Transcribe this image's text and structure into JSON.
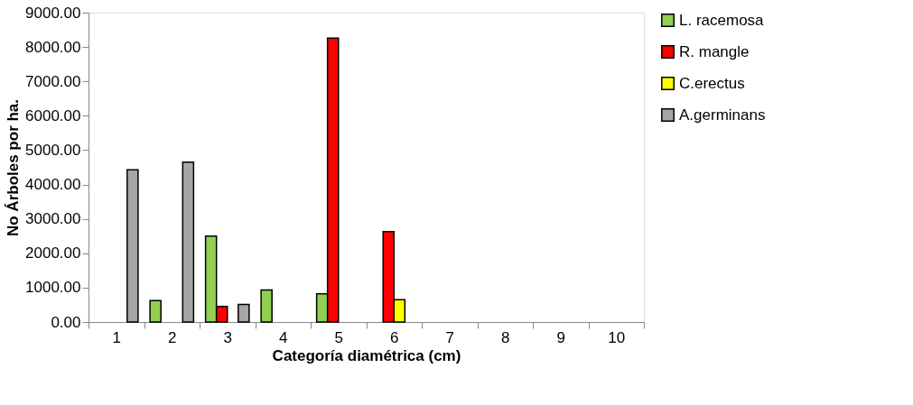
{
  "chart_data": {
    "type": "bar",
    "xlabel": "Categoría diamétrica (cm)",
    "ylabel": "No Árboles por ha.",
    "categories": [
      "1",
      "2",
      "3",
      "4",
      "5",
      "6",
      "7",
      "8",
      "9",
      "10"
    ],
    "series": [
      {
        "name": "L. racemosa",
        "color": "#92d050",
        "values": [
          null,
          620,
          2500,
          930,
          820,
          null,
          null,
          null,
          null,
          null
        ]
      },
      {
        "name": "R. mangle",
        "color": "#ff0000",
        "values": [
          null,
          null,
          450,
          null,
          8260,
          2630,
          null,
          null,
          null,
          null
        ]
      },
      {
        "name": "C.erectus",
        "color": "#ffff00",
        "values": [
          null,
          null,
          null,
          null,
          null,
          650,
          null,
          null,
          null,
          null
        ]
      },
      {
        "name": "A.germinans",
        "color": "#a6a6a6",
        "values": [
          4430,
          4650,
          510,
          null,
          null,
          null,
          null,
          null,
          null,
          null
        ]
      }
    ],
    "ylim": [
      0,
      9000
    ],
    "yticks": [
      {
        "value": 0,
        "label": "0.00"
      },
      {
        "value": 1000,
        "label": "1000.00"
      },
      {
        "value": 2000,
        "label": "2000.00"
      },
      {
        "value": 3000,
        "label": "3000.00"
      },
      {
        "value": 4000,
        "label": "4000.00"
      },
      {
        "value": 5000,
        "label": "5000.00"
      },
      {
        "value": 6000,
        "label": "6000.00"
      },
      {
        "value": 7000,
        "label": "7000.00"
      },
      {
        "value": 8000,
        "label": "8000.00"
      },
      {
        "value": 9000,
        "label": "9000.00"
      }
    ],
    "grid": false,
    "legend": "right"
  }
}
